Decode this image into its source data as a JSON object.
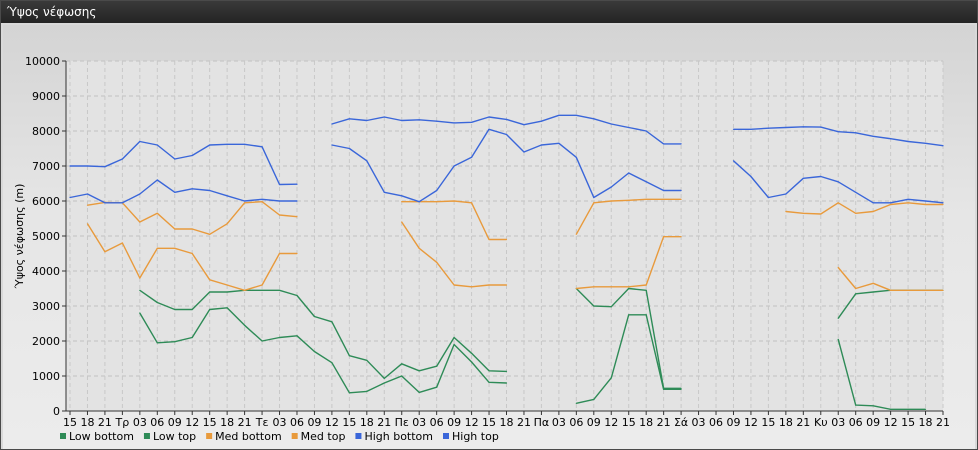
{
  "window": {
    "title": "Ύψος νέφωσης"
  },
  "chart_data": {
    "type": "line",
    "ylabel": "Ύψος νέφωσης (m)",
    "ylim": [
      0,
      10000
    ],
    "yticks": [
      0,
      1000,
      2000,
      3000,
      4000,
      5000,
      6000,
      7000,
      8000,
      9000,
      10000
    ],
    "grid": true,
    "legend_position": "bottom-left",
    "categories": [
      "15",
      "18",
      "21",
      "Τρ",
      "03",
      "06",
      "09",
      "12",
      "15",
      "18",
      "21",
      "Τε",
      "03",
      "06",
      "09",
      "12",
      "15",
      "18",
      "21",
      "Πε",
      "03",
      "06",
      "09",
      "12",
      "15",
      "18",
      "21",
      "Πα",
      "03",
      "06",
      "09",
      "12",
      "15",
      "18",
      "21",
      "Σά",
      "03",
      "06",
      "09",
      "12",
      "15",
      "18",
      "21",
      "Κυ",
      "03",
      "06",
      "09",
      "12",
      "15",
      "18",
      "21"
    ],
    "series": [
      {
        "name": "Low bottom",
        "color": "#2e8b57",
        "values": [
          null,
          null,
          null,
          null,
          2800,
          1950,
          1980,
          2100,
          2900,
          2950,
          2450,
          2000,
          2100,
          2150,
          1700,
          1380,
          520,
          560,
          800,
          1000,
          530,
          680,
          1900,
          1400,
          820,
          800,
          null,
          null,
          null,
          220,
          330,
          950,
          2750,
          2750,
          620,
          620,
          null,
          null,
          null,
          null,
          null,
          null,
          null,
          null,
          2050,
          170,
          150,
          50,
          50,
          50,
          null
        ]
      },
      {
        "name": "Low top",
        "color": "#2e8b57",
        "values": [
          null,
          null,
          null,
          null,
          3450,
          3100,
          2900,
          2900,
          3400,
          3400,
          3450,
          3450,
          3450,
          3300,
          2700,
          2550,
          1580,
          1450,
          930,
          1350,
          1150,
          1280,
          2100,
          1650,
          1150,
          1130,
          null,
          null,
          null,
          3500,
          3000,
          2980,
          3500,
          3450,
          650,
          650,
          null,
          null,
          null,
          null,
          null,
          null,
          null,
          null,
          2650,
          3350,
          3400,
          3450,
          3450,
          3450,
          3450
        ]
      },
      {
        "name": "Med bottom",
        "color": "#e89a3c",
        "values": [
          null,
          5350,
          4550,
          4800,
          3800,
          4650,
          4650,
          4500,
          3750,
          3600,
          3450,
          3600,
          4500,
          4500,
          null,
          null,
          null,
          null,
          null,
          5400,
          4650,
          4250,
          3600,
          3550,
          3600,
          3600,
          null,
          null,
          null,
          3500,
          3550,
          3550,
          3550,
          3600,
          4980,
          4980,
          null,
          null,
          null,
          null,
          null,
          null,
          null,
          null,
          4100,
          3500,
          3650,
          3450,
          3450,
          3450,
          3450
        ]
      },
      {
        "name": "Med top",
        "color": "#e89a3c",
        "values": [
          null,
          5880,
          5960,
          5950,
          5400,
          5650,
          5200,
          5200,
          5050,
          5350,
          5950,
          5980,
          5600,
          5550,
          null,
          null,
          null,
          null,
          null,
          5980,
          5980,
          5980,
          6000,
          5950,
          4900,
          4900,
          null,
          null,
          null,
          5050,
          5950,
          6000,
          6020,
          6050,
          6050,
          6050,
          null,
          null,
          null,
          null,
          null,
          5700,
          5650,
          5630,
          5950,
          5650,
          5700,
          5900,
          5950,
          5900,
          5900
        ]
      },
      {
        "name": "High bottom",
        "color": "#3a66d9",
        "values": [
          6100,
          6200,
          5950,
          5950,
          6200,
          6600,
          6250,
          6350,
          6300,
          6150,
          6000,
          6050,
          6000,
          6000,
          null,
          7600,
          7500,
          7150,
          6250,
          6150,
          5980,
          6300,
          7000,
          7250,
          8050,
          7900,
          7400,
          7600,
          7650,
          7250,
          6100,
          6400,
          6800,
          6550,
          6300,
          6300,
          null,
          null,
          7150,
          6700,
          6100,
          6200,
          6650,
          6700,
          6550,
          6250,
          5950,
          5950,
          6050,
          6000,
          5950
        ]
      },
      {
        "name": "High top",
        "color": "#3a66d9",
        "values": [
          7000,
          7000,
          6980,
          7200,
          7700,
          7600,
          7200,
          7300,
          7600,
          7620,
          7620,
          7550,
          6470,
          6480,
          null,
          8200,
          8350,
          8300,
          8400,
          8300,
          8320,
          8280,
          8230,
          8250,
          8400,
          8330,
          8180,
          8280,
          8450,
          8450,
          8350,
          8200,
          8100,
          8000,
          7630,
          7630,
          null,
          null,
          8050,
          8050,
          8080,
          8100,
          8120,
          8110,
          7980,
          7950,
          7850,
          7780,
          7700,
          7650,
          7580
        ]
      }
    ]
  }
}
